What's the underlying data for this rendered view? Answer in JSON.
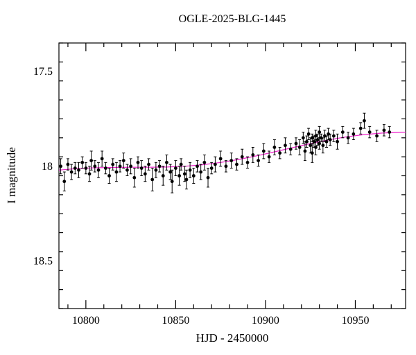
{
  "figure": {
    "background": "#ffffff",
    "frame_color": "#000000"
  },
  "chart_data": {
    "type": "scatter",
    "title": "OGLE-2025-BLG-1445",
    "xlabel": "HJD - 2450000",
    "ylabel": "I magnitude",
    "xlim": [
      10785,
      10978
    ],
    "ylim": [
      17.35,
      18.75
    ],
    "y_axis_inverted": true,
    "x_ticks": [
      10800,
      10850,
      10900,
      10950
    ],
    "x_tick_labels": [
      "10800",
      "10850",
      "10900",
      "10950"
    ],
    "y_ticks": [
      17.5,
      18.0,
      18.5
    ],
    "y_tick_labels": [
      "17.5",
      "18",
      "18.5"
    ],
    "x_minor_step": 10,
    "y_minor_step": 0.1,
    "grid": false,
    "legend": "none",
    "point_color": "#000000",
    "model_color": "#ee22cc",
    "points": [
      [
        10786,
        18.0,
        0.04
      ],
      [
        10788,
        18.08,
        0.05
      ],
      [
        10790,
        17.99,
        0.03
      ],
      [
        10792,
        18.03,
        0.04
      ],
      [
        10794,
        18.01,
        0.03
      ],
      [
        10796,
        18.02,
        0.04
      ],
      [
        10798,
        17.98,
        0.03
      ],
      [
        10800,
        18.01,
        0.03
      ],
      [
        10802,
        18.04,
        0.04
      ],
      [
        10803,
        17.97,
        0.05
      ],
      [
        10805,
        18.0,
        0.03
      ],
      [
        10807,
        18.02,
        0.04
      ],
      [
        10809,
        17.96,
        0.04
      ],
      [
        10811,
        18.01,
        0.03
      ],
      [
        10813,
        18.05,
        0.04
      ],
      [
        10815,
        17.99,
        0.03
      ],
      [
        10817,
        18.03,
        0.05
      ],
      [
        10819,
        18.0,
        0.03
      ],
      [
        10821,
        17.97,
        0.04
      ],
      [
        10823,
        18.02,
        0.03
      ],
      [
        10825,
        18.0,
        0.04
      ],
      [
        10827,
        18.06,
        0.05
      ],
      [
        10829,
        17.98,
        0.03
      ],
      [
        10831,
        18.01,
        0.04
      ],
      [
        10833,
        18.04,
        0.04
      ],
      [
        10835,
        17.99,
        0.03
      ],
      [
        10837,
        18.07,
        0.06
      ],
      [
        10839,
        18.02,
        0.04
      ],
      [
        10841,
        18.0,
        0.03
      ],
      [
        10843,
        18.05,
        0.05
      ],
      [
        10845,
        17.98,
        0.04
      ],
      [
        10847,
        18.03,
        0.04
      ],
      [
        10848,
        18.08,
        0.06
      ],
      [
        10850,
        18.01,
        0.04
      ],
      [
        10852,
        18.05,
        0.05
      ],
      [
        10853,
        17.99,
        0.03
      ],
      [
        10855,
        18.04,
        0.04
      ],
      [
        10856,
        18.07,
        0.05
      ],
      [
        10858,
        18.02,
        0.04
      ],
      [
        10860,
        18.05,
        0.04
      ],
      [
        10862,
        18.0,
        0.03
      ],
      [
        10864,
        18.03,
        0.04
      ],
      [
        10866,
        17.98,
        0.04
      ],
      [
        10868,
        18.06,
        0.05
      ],
      [
        10870,
        18.01,
        0.03
      ],
      [
        10872,
        17.99,
        0.04
      ],
      [
        10875,
        17.96,
        0.04
      ],
      [
        10878,
        18.0,
        0.03
      ],
      [
        10881,
        17.97,
        0.04
      ],
      [
        10884,
        17.99,
        0.03
      ],
      [
        10887,
        17.95,
        0.04
      ],
      [
        10890,
        17.98,
        0.03
      ],
      [
        10893,
        17.94,
        0.04
      ],
      [
        10896,
        17.97,
        0.03
      ],
      [
        10899,
        17.92,
        0.04
      ],
      [
        10902,
        17.95,
        0.03
      ],
      [
        10905,
        17.9,
        0.04
      ],
      [
        10908,
        17.93,
        0.03
      ],
      [
        10911,
        17.89,
        0.04
      ],
      [
        10914,
        17.91,
        0.03
      ],
      [
        10917,
        17.88,
        0.03
      ],
      [
        10919,
        17.9,
        0.04
      ],
      [
        10921,
        17.85,
        0.03
      ],
      [
        10922,
        17.92,
        0.05
      ],
      [
        10923,
        17.87,
        0.03
      ],
      [
        10924,
        17.83,
        0.03
      ],
      [
        10925,
        17.89,
        0.04
      ],
      [
        10926,
        17.85,
        0.02
      ],
      [
        10926,
        17.93,
        0.05
      ],
      [
        10927,
        17.87,
        0.03
      ],
      [
        10928,
        17.84,
        0.03
      ],
      [
        10928,
        17.9,
        0.04
      ],
      [
        10929,
        17.86,
        0.03
      ],
      [
        10930,
        17.88,
        0.03
      ],
      [
        10930,
        17.82,
        0.03
      ],
      [
        10931,
        17.85,
        0.02
      ],
      [
        10932,
        17.89,
        0.04
      ],
      [
        10933,
        17.84,
        0.03
      ],
      [
        10934,
        17.87,
        0.03
      ],
      [
        10935,
        17.83,
        0.03
      ],
      [
        10936,
        17.86,
        0.03
      ],
      [
        10938,
        17.84,
        0.03
      ],
      [
        10940,
        17.87,
        0.04
      ],
      [
        10943,
        17.82,
        0.03
      ],
      [
        10946,
        17.85,
        0.03
      ],
      [
        10949,
        17.83,
        0.03
      ],
      [
        10953,
        17.8,
        0.03
      ],
      [
        10955,
        17.76,
        0.04
      ],
      [
        10958,
        17.82,
        0.03
      ],
      [
        10962,
        17.84,
        0.03
      ],
      [
        10966,
        17.81,
        0.03
      ],
      [
        10969,
        17.82,
        0.03
      ]
    ],
    "model_curve": [
      [
        10785,
        18.02
      ],
      [
        10795,
        18.012
      ],
      [
        10805,
        18.008
      ],
      [
        10815,
        18.006
      ],
      [
        10825,
        18.005
      ],
      [
        10835,
        18.005
      ],
      [
        10845,
        18.004
      ],
      [
        10855,
        18.0
      ],
      [
        10865,
        17.992
      ],
      [
        10875,
        17.98
      ],
      [
        10885,
        17.964
      ],
      [
        10895,
        17.945
      ],
      [
        10905,
        17.924
      ],
      [
        10915,
        17.902
      ],
      [
        10925,
        17.88
      ],
      [
        10935,
        17.861
      ],
      [
        10945,
        17.845
      ],
      [
        10955,
        17.833
      ],
      [
        10965,
        17.825
      ],
      [
        10972,
        17.822
      ],
      [
        10978,
        17.82
      ]
    ]
  }
}
